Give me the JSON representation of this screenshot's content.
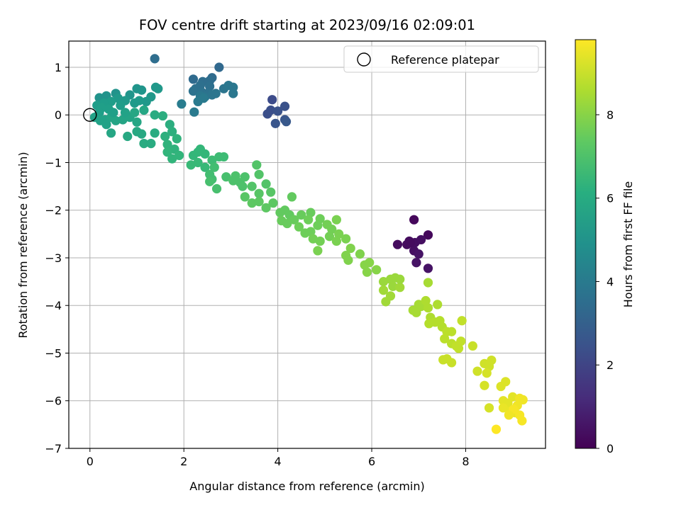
{
  "chart_data": {
    "type": "scatter",
    "title": "FOV centre drift starting at 2023/09/16 02:09:01",
    "xlabel": "Angular distance from reference (arcmin)",
    "ylabel": "Rotation from reference (arcmin)",
    "xlim": [
      -0.45,
      9.7
    ],
    "ylim": [
      -7.0,
      1.55
    ],
    "xticks": [
      0,
      2,
      4,
      6,
      8
    ],
    "yticks": [
      1,
      0,
      -1,
      -2,
      -3,
      -4,
      -5,
      -6,
      -7
    ],
    "grid": true,
    "colormap": "viridis",
    "colorbar": {
      "label": "Hours from first FF file",
      "range": [
        0,
        9.8
      ],
      "ticks": [
        0,
        2,
        4,
        6,
        8
      ]
    },
    "legend": {
      "placement": "top-right",
      "entries": [
        {
          "label": "Reference platepar",
          "marker": "open-circle"
        }
      ]
    },
    "reference_point": {
      "x": 0,
      "y": 0
    },
    "points": [
      {
        "x": 6.9,
        "y": -2.2,
        "c": 0.2
      },
      {
        "x": 7.2,
        "y": -2.52,
        "c": 0.2
      },
      {
        "x": 6.8,
        "y": -2.65,
        "c": 0.3
      },
      {
        "x": 6.75,
        "y": -2.72,
        "c": 0.3
      },
      {
        "x": 6.55,
        "y": -2.72,
        "c": 0.3
      },
      {
        "x": 6.92,
        "y": -2.68,
        "c": 0.4
      },
      {
        "x": 7.05,
        "y": -2.62,
        "c": 0.4
      },
      {
        "x": 6.9,
        "y": -2.85,
        "c": 0.4
      },
      {
        "x": 7.0,
        "y": -2.92,
        "c": 0.5
      },
      {
        "x": 6.95,
        "y": -3.1,
        "c": 0.5
      },
      {
        "x": 7.2,
        "y": -3.22,
        "c": 0.5
      },
      {
        "x": 6.82,
        "y": -2.68,
        "c": 0.3
      },
      {
        "x": 3.88,
        "y": 0.32,
        "c": 2.3
      },
      {
        "x": 3.85,
        "y": 0.1,
        "c": 2.4
      },
      {
        "x": 3.78,
        "y": 0.02,
        "c": 2.4
      },
      {
        "x": 4.0,
        "y": 0.08,
        "c": 2.5
      },
      {
        "x": 4.15,
        "y": 0.18,
        "c": 2.5
      },
      {
        "x": 4.15,
        "y": -0.1,
        "c": 2.6
      },
      {
        "x": 3.95,
        "y": -0.18,
        "c": 2.6
      },
      {
        "x": 4.18,
        "y": -0.14,
        "c": 2.7
      },
      {
        "x": 1.38,
        "y": 1.18,
        "c": 3.5
      },
      {
        "x": 2.75,
        "y": 1.0,
        "c": 3.3
      },
      {
        "x": 2.2,
        "y": 0.75,
        "c": 3.4
      },
      {
        "x": 2.6,
        "y": 0.78,
        "c": 3.4
      },
      {
        "x": 2.55,
        "y": 0.72,
        "c": 3.5
      },
      {
        "x": 2.4,
        "y": 0.7,
        "c": 3.5
      },
      {
        "x": 2.35,
        "y": 0.62,
        "c": 3.6
      },
      {
        "x": 2.55,
        "y": 0.6,
        "c": 3.6
      },
      {
        "x": 2.25,
        "y": 0.55,
        "c": 3.6
      },
      {
        "x": 2.2,
        "y": 0.5,
        "c": 3.7
      },
      {
        "x": 2.38,
        "y": 0.48,
        "c": 3.7
      },
      {
        "x": 2.5,
        "y": 0.45,
        "c": 3.7
      },
      {
        "x": 2.45,
        "y": 0.38,
        "c": 3.8
      },
      {
        "x": 2.6,
        "y": 0.42,
        "c": 3.8
      },
      {
        "x": 2.68,
        "y": 0.45,
        "c": 3.8
      },
      {
        "x": 2.85,
        "y": 0.55,
        "c": 3.8
      },
      {
        "x": 2.95,
        "y": 0.62,
        "c": 3.9
      },
      {
        "x": 3.05,
        "y": 0.58,
        "c": 3.9
      },
      {
        "x": 3.05,
        "y": 0.45,
        "c": 3.9
      },
      {
        "x": 2.35,
        "y": 0.4,
        "c": 3.9
      },
      {
        "x": 2.3,
        "y": 0.28,
        "c": 4.0
      },
      {
        "x": 2.22,
        "y": 0.06,
        "c": 4.0
      },
      {
        "x": 1.95,
        "y": 0.23,
        "c": 4.1
      },
      {
        "x": 2.42,
        "y": 0.35,
        "c": 4.0
      },
      {
        "x": 0.2,
        "y": 0.36,
        "c": 5.0
      },
      {
        "x": 0.35,
        "y": 0.4,
        "c": 5.0
      },
      {
        "x": 0.55,
        "y": 0.45,
        "c": 5.0
      },
      {
        "x": 0.85,
        "y": 0.42,
        "c": 5.1
      },
      {
        "x": 1.0,
        "y": 0.55,
        "c": 5.1
      },
      {
        "x": 1.1,
        "y": 0.52,
        "c": 5.1
      },
      {
        "x": 1.3,
        "y": 0.38,
        "c": 5.2
      },
      {
        "x": 1.45,
        "y": 0.55,
        "c": 5.2
      },
      {
        "x": 1.4,
        "y": 0.58,
        "c": 5.2
      },
      {
        "x": 1.2,
        "y": 0.28,
        "c": 5.2
      },
      {
        "x": 1.05,
        "y": 0.3,
        "c": 5.3
      },
      {
        "x": 0.95,
        "y": 0.25,
        "c": 5.3
      },
      {
        "x": 0.75,
        "y": 0.3,
        "c": 5.3
      },
      {
        "x": 0.6,
        "y": 0.35,
        "c": 5.3
      },
      {
        "x": 0.45,
        "y": 0.28,
        "c": 5.4
      },
      {
        "x": 0.3,
        "y": 0.25,
        "c": 5.4
      },
      {
        "x": 0.15,
        "y": 0.2,
        "c": 5.4
      },
      {
        "x": 0.25,
        "y": 0.15,
        "c": 5.5
      },
      {
        "x": 0.4,
        "y": 0.12,
        "c": 5.5
      },
      {
        "x": 0.2,
        "y": 0.05,
        "c": 5.5
      },
      {
        "x": 0.1,
        "y": -0.05,
        "c": 5.6
      },
      {
        "x": 0.22,
        "y": -0.12,
        "c": 5.6
      },
      {
        "x": 0.32,
        "y": -0.1,
        "c": 5.6
      },
      {
        "x": 0.45,
        "y": -0.05,
        "c": 5.7
      },
      {
        "x": 0.55,
        "y": -0.12,
        "c": 5.7
      },
      {
        "x": 0.7,
        "y": -0.1,
        "c": 5.7
      },
      {
        "x": 0.85,
        "y": -0.05,
        "c": 5.7
      },
      {
        "x": 0.95,
        "y": 0.05,
        "c": 5.8
      },
      {
        "x": 1.15,
        "y": 0.1,
        "c": 5.8
      },
      {
        "x": 1.0,
        "y": -0.15,
        "c": 5.8
      },
      {
        "x": 0.45,
        "y": -0.38,
        "c": 5.8
      },
      {
        "x": 0.8,
        "y": -0.45,
        "c": 5.9
      },
      {
        "x": 1.0,
        "y": -0.35,
        "c": 5.9
      },
      {
        "x": 1.1,
        "y": -0.4,
        "c": 5.9
      },
      {
        "x": 1.15,
        "y": -0.6,
        "c": 6.0
      },
      {
        "x": 1.3,
        "y": -0.6,
        "c": 6.0
      },
      {
        "x": 1.38,
        "y": -0.38,
        "c": 6.0
      },
      {
        "x": 1.38,
        "y": 0.0,
        "c": 6.0
      },
      {
        "x": 1.55,
        "y": -0.02,
        "c": 6.1
      },
      {
        "x": 1.7,
        "y": -0.2,
        "c": 6.1
      },
      {
        "x": 0.65,
        "y": 0.2,
        "c": 5.4
      },
      {
        "x": 0.5,
        "y": 0.05,
        "c": 5.5
      },
      {
        "x": 0.35,
        "y": -0.2,
        "c": 5.6
      },
      {
        "x": 0.75,
        "y": 0.05,
        "c": 5.6
      },
      {
        "x": 1.6,
        "y": -0.45,
        "c": 6.2
      },
      {
        "x": 1.75,
        "y": -0.35,
        "c": 6.2
      },
      {
        "x": 1.85,
        "y": -0.5,
        "c": 6.3
      },
      {
        "x": 1.65,
        "y": -0.62,
        "c": 6.3
      },
      {
        "x": 1.8,
        "y": -0.72,
        "c": 6.3
      },
      {
        "x": 1.65,
        "y": -0.78,
        "c": 6.4
      },
      {
        "x": 1.75,
        "y": -0.92,
        "c": 6.4
      },
      {
        "x": 1.9,
        "y": -0.85,
        "c": 6.4
      },
      {
        "x": 2.2,
        "y": -0.85,
        "c": 6.5
      },
      {
        "x": 2.3,
        "y": -0.78,
        "c": 6.5
      },
      {
        "x": 2.45,
        "y": -0.82,
        "c": 6.5
      },
      {
        "x": 2.3,
        "y": -1.0,
        "c": 6.6
      },
      {
        "x": 2.45,
        "y": -1.1,
        "c": 6.6
      },
      {
        "x": 2.15,
        "y": -1.05,
        "c": 6.6
      },
      {
        "x": 2.35,
        "y": -0.72,
        "c": 6.5
      },
      {
        "x": 2.6,
        "y": -0.95,
        "c": 6.7
      },
      {
        "x": 2.75,
        "y": -0.88,
        "c": 6.7
      },
      {
        "x": 2.85,
        "y": -0.88,
        "c": 6.7
      },
      {
        "x": 2.65,
        "y": -1.1,
        "c": 6.8
      },
      {
        "x": 2.55,
        "y": -1.25,
        "c": 6.8
      },
      {
        "x": 2.6,
        "y": -1.35,
        "c": 6.8
      },
      {
        "x": 2.55,
        "y": -1.4,
        "c": 6.9
      },
      {
        "x": 2.7,
        "y": -1.55,
        "c": 6.9
      },
      {
        "x": 2.9,
        "y": -1.3,
        "c": 6.9
      },
      {
        "x": 3.05,
        "y": -1.38,
        "c": 7.0
      },
      {
        "x": 3.2,
        "y": -1.42,
        "c": 7.0
      },
      {
        "x": 3.1,
        "y": -1.28,
        "c": 7.0
      },
      {
        "x": 3.3,
        "y": -1.3,
        "c": 7.0
      },
      {
        "x": 3.55,
        "y": -1.05,
        "c": 7.1
      },
      {
        "x": 3.6,
        "y": -1.25,
        "c": 7.1
      },
      {
        "x": 3.45,
        "y": -1.5,
        "c": 7.1
      },
      {
        "x": 3.75,
        "y": -1.45,
        "c": 7.1
      },
      {
        "x": 3.85,
        "y": -1.62,
        "c": 7.2
      },
      {
        "x": 3.6,
        "y": -1.65,
        "c": 7.2
      },
      {
        "x": 3.3,
        "y": -1.72,
        "c": 7.2
      },
      {
        "x": 3.45,
        "y": -1.85,
        "c": 7.3
      },
      {
        "x": 3.6,
        "y": -1.82,
        "c": 7.3
      },
      {
        "x": 3.75,
        "y": -1.95,
        "c": 7.3
      },
      {
        "x": 3.9,
        "y": -1.85,
        "c": 7.3
      },
      {
        "x": 4.3,
        "y": -1.72,
        "c": 7.4
      },
      {
        "x": 4.05,
        "y": -2.05,
        "c": 7.4
      },
      {
        "x": 4.15,
        "y": -2.0,
        "c": 7.4
      },
      {
        "x": 4.25,
        "y": -2.1,
        "c": 7.4
      },
      {
        "x": 4.08,
        "y": -2.22,
        "c": 7.5
      },
      {
        "x": 4.2,
        "y": -2.28,
        "c": 7.5
      },
      {
        "x": 4.35,
        "y": -2.2,
        "c": 7.5
      },
      {
        "x": 4.5,
        "y": -2.1,
        "c": 7.5
      },
      {
        "x": 4.7,
        "y": -2.05,
        "c": 7.5
      },
      {
        "x": 4.45,
        "y": -2.35,
        "c": 7.6
      },
      {
        "x": 4.65,
        "y": -2.2,
        "c": 7.6
      },
      {
        "x": 4.9,
        "y": -2.18,
        "c": 7.6
      },
      {
        "x": 4.85,
        "y": -2.32,
        "c": 7.6
      },
      {
        "x": 4.7,
        "y": -2.45,
        "c": 7.6
      },
      {
        "x": 4.75,
        "y": -2.6,
        "c": 7.7
      },
      {
        "x": 4.9,
        "y": -2.65,
        "c": 7.7
      },
      {
        "x": 5.05,
        "y": -2.3,
        "c": 7.7
      },
      {
        "x": 5.15,
        "y": -2.4,
        "c": 7.7
      },
      {
        "x": 5.1,
        "y": -2.55,
        "c": 7.7
      },
      {
        "x": 5.25,
        "y": -2.65,
        "c": 7.8
      },
      {
        "x": 5.3,
        "y": -2.5,
        "c": 7.8
      },
      {
        "x": 5.25,
        "y": -2.2,
        "c": 7.8
      },
      {
        "x": 4.85,
        "y": -2.85,
        "c": 7.8
      },
      {
        "x": 5.45,
        "y": -2.6,
        "c": 7.8
      },
      {
        "x": 5.55,
        "y": -2.8,
        "c": 7.9
      },
      {
        "x": 5.45,
        "y": -2.95,
        "c": 7.9
      },
      {
        "x": 5.5,
        "y": -3.05,
        "c": 7.9
      },
      {
        "x": 5.75,
        "y": -2.92,
        "c": 7.9
      },
      {
        "x": 5.85,
        "y": -3.15,
        "c": 8.0
      },
      {
        "x": 5.95,
        "y": -3.1,
        "c": 8.0
      },
      {
        "x": 5.9,
        "y": -3.3,
        "c": 8.0
      },
      {
        "x": 6.1,
        "y": -3.25,
        "c": 8.0
      },
      {
        "x": 4.58,
        "y": -2.48,
        "c": 7.6
      },
      {
        "x": 3.25,
        "y": -1.5,
        "c": 7.0
      },
      {
        "x": 6.25,
        "y": -3.5,
        "c": 8.3
      },
      {
        "x": 6.4,
        "y": -3.45,
        "c": 8.3
      },
      {
        "x": 6.5,
        "y": -3.42,
        "c": 8.3
      },
      {
        "x": 6.45,
        "y": -3.6,
        "c": 8.3
      },
      {
        "x": 6.6,
        "y": -3.62,
        "c": 8.4
      },
      {
        "x": 6.25,
        "y": -3.68,
        "c": 8.4
      },
      {
        "x": 6.4,
        "y": -3.8,
        "c": 8.4
      },
      {
        "x": 6.3,
        "y": -3.92,
        "c": 8.4
      },
      {
        "x": 7.2,
        "y": -3.52,
        "c": 8.5
      },
      {
        "x": 7.0,
        "y": -3.98,
        "c": 8.5
      },
      {
        "x": 6.88,
        "y": -4.1,
        "c": 8.5
      },
      {
        "x": 7.05,
        "y": -4.02,
        "c": 8.5
      },
      {
        "x": 7.15,
        "y": -3.9,
        "c": 8.6
      },
      {
        "x": 7.2,
        "y": -4.05,
        "c": 8.6
      },
      {
        "x": 7.4,
        "y": -3.98,
        "c": 8.6
      },
      {
        "x": 7.25,
        "y": -4.25,
        "c": 8.6
      },
      {
        "x": 7.22,
        "y": -4.38,
        "c": 8.7
      },
      {
        "x": 7.35,
        "y": -4.35,
        "c": 8.7
      },
      {
        "x": 7.45,
        "y": -4.32,
        "c": 8.7
      },
      {
        "x": 7.5,
        "y": -4.45,
        "c": 8.7
      },
      {
        "x": 7.6,
        "y": -4.55,
        "c": 8.8
      },
      {
        "x": 7.7,
        "y": -4.55,
        "c": 8.8
      },
      {
        "x": 7.55,
        "y": -4.7,
        "c": 8.8
      },
      {
        "x": 7.7,
        "y": -4.8,
        "c": 8.8
      },
      {
        "x": 7.8,
        "y": -4.85,
        "c": 8.9
      },
      {
        "x": 7.9,
        "y": -4.75,
        "c": 8.9
      },
      {
        "x": 7.85,
        "y": -4.9,
        "c": 8.9
      },
      {
        "x": 7.92,
        "y": -4.32,
        "c": 8.9
      },
      {
        "x": 8.15,
        "y": -4.85,
        "c": 9.0
      },
      {
        "x": 7.6,
        "y": -5.12,
        "c": 9.0
      },
      {
        "x": 7.7,
        "y": -5.2,
        "c": 9.0
      },
      {
        "x": 8.25,
        "y": -5.38,
        "c": 9.1
      },
      {
        "x": 8.4,
        "y": -5.22,
        "c": 9.1
      },
      {
        "x": 8.5,
        "y": -5.28,
        "c": 9.1
      },
      {
        "x": 8.55,
        "y": -5.15,
        "c": 9.1
      },
      {
        "x": 8.45,
        "y": -5.42,
        "c": 9.2
      },
      {
        "x": 8.4,
        "y": -5.68,
        "c": 9.2
      },
      {
        "x": 8.5,
        "y": -6.15,
        "c": 9.2
      },
      {
        "x": 7.52,
        "y": -5.14,
        "c": 9.0
      },
      {
        "x": 6.95,
        "y": -4.15,
        "c": 8.5
      },
      {
        "x": 6.6,
        "y": -3.45,
        "c": 8.3
      },
      {
        "x": 8.75,
        "y": -5.7,
        "c": 9.3
      },
      {
        "x": 8.85,
        "y": -5.6,
        "c": 9.3
      },
      {
        "x": 8.8,
        "y": -6.0,
        "c": 9.4
      },
      {
        "x": 8.9,
        "y": -6.05,
        "c": 9.4
      },
      {
        "x": 9.0,
        "y": -5.92,
        "c": 9.4
      },
      {
        "x": 8.8,
        "y": -6.15,
        "c": 9.5
      },
      {
        "x": 8.95,
        "y": -6.22,
        "c": 9.5
      },
      {
        "x": 9.05,
        "y": -6.25,
        "c": 9.5
      },
      {
        "x": 9.1,
        "y": -6.1,
        "c": 9.6
      },
      {
        "x": 9.15,
        "y": -5.95,
        "c": 9.6
      },
      {
        "x": 9.22,
        "y": -5.98,
        "c": 9.6
      },
      {
        "x": 9.15,
        "y": -6.3,
        "c": 9.7
      },
      {
        "x": 9.2,
        "y": -6.42,
        "c": 9.7
      },
      {
        "x": 9.02,
        "y": -6.18,
        "c": 9.7
      },
      {
        "x": 8.65,
        "y": -6.6,
        "c": 9.8
      },
      {
        "x": 8.92,
        "y": -6.3,
        "c": 9.6
      }
    ]
  }
}
